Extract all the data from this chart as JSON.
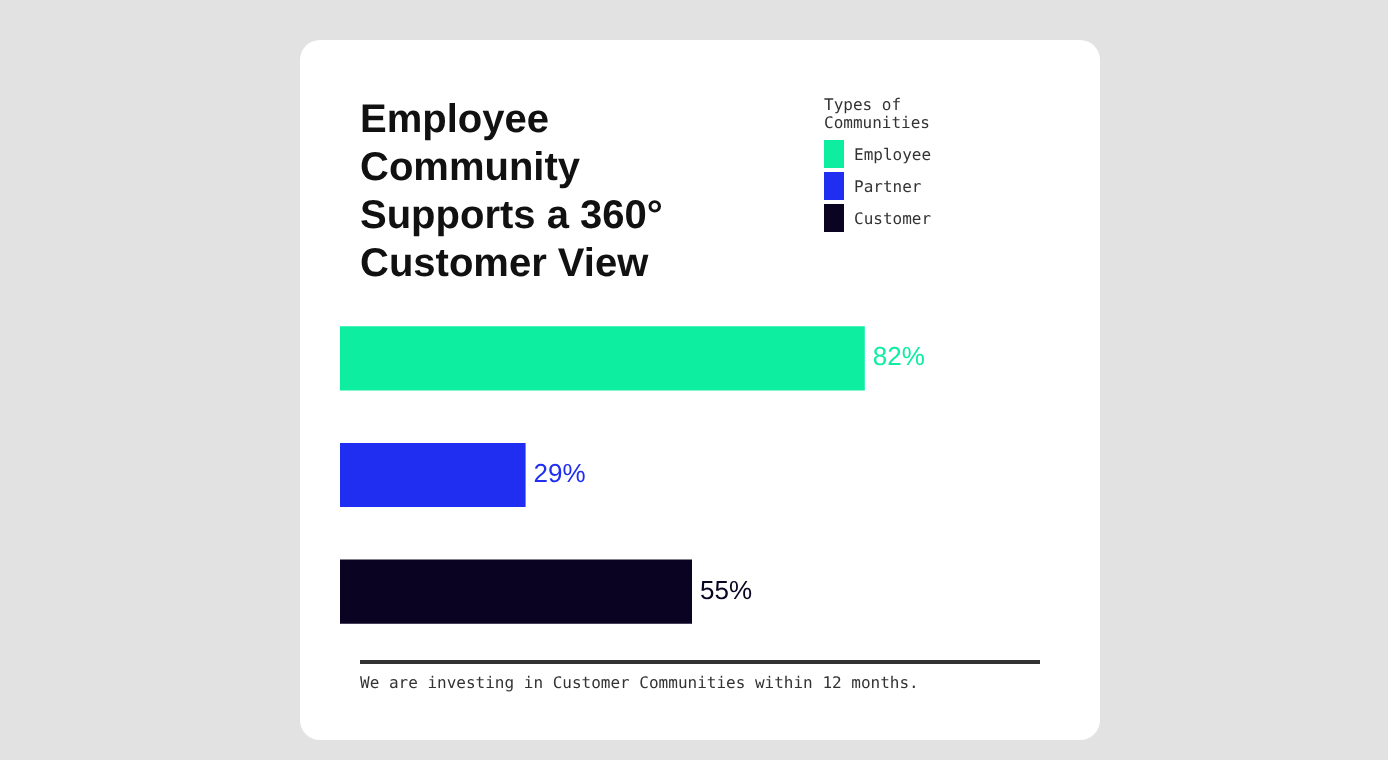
{
  "chart_data": {
    "type": "bar",
    "orientation": "horizontal",
    "stacked": true,
    "title": "Employee Community Supports a 360° Customer View",
    "legend_title": "Types of Communities",
    "legend": "top right",
    "categories": [
      null,
      null,
      null
    ],
    "series": [
      {
        "name": "Employee",
        "color": "#0eeea0",
        "values": [
          82,
          null,
          null
        ],
        "value_labels": [
          "82%",
          null,
          null
        ]
      },
      {
        "name": "Partner",
        "color": "#1f2ef0",
        "values": [
          null,
          29,
          null
        ],
        "value_labels": [
          null,
          "29%",
          null
        ]
      },
      {
        "name": "Customer",
        "color": "#0a0322",
        "values": [
          null,
          null,
          55
        ],
        "value_labels": [
          null,
          null,
          "55%"
        ]
      }
    ],
    "annotations": [
      "We are investing in Customer Communities within 12 months."
    ]
  }
}
